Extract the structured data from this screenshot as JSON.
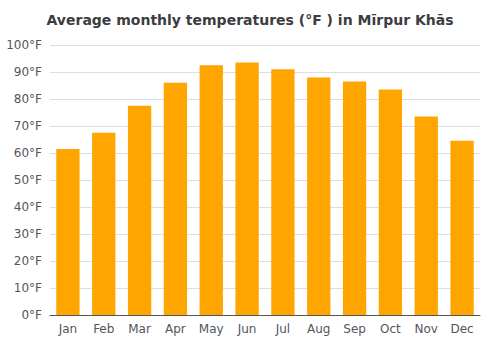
{
  "chart_data": {
    "type": "bar",
    "title": "Average monthly temperatures (°F ) in Mīrpur Khās",
    "categories": [
      "Jan",
      "Feb",
      "Mar",
      "Apr",
      "May",
      "Jun",
      "Jul",
      "Aug",
      "Sep",
      "Oct",
      "Nov",
      "Dec"
    ],
    "values": [
      61.5,
      67.5,
      77.5,
      86,
      92.5,
      93.5,
      91,
      88,
      86.5,
      83.5,
      73.5,
      64.5
    ],
    "color": "#FFA500",
    "ylim": [
      0,
      100
    ],
    "yticks": [
      {
        "value": 0,
        "label": "0°F"
      },
      {
        "value": 10,
        "label": "10°F"
      },
      {
        "value": 20,
        "label": "20°F"
      },
      {
        "value": 30,
        "label": "30°F"
      },
      {
        "value": 40,
        "label": "40°F"
      },
      {
        "value": 50,
        "label": "50°F"
      },
      {
        "value": 60,
        "label": "60°F"
      },
      {
        "value": 70,
        "label": "70°F"
      },
      {
        "value": 80,
        "label": "80°F"
      },
      {
        "value": 90,
        "label": "90°F"
      },
      {
        "value": 100,
        "label": "100°F"
      }
    ],
    "grid": true
  }
}
